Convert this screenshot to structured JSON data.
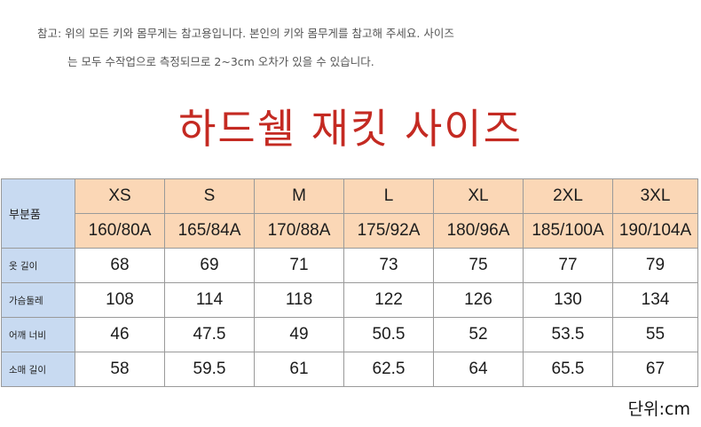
{
  "note": {
    "line1": "참고: 위의 모든 키와 몸무게는 참고용입니다. 본인의 키와 몸무게를 참고해 주세요. 사이즈",
    "line2": "는 모두 수작업으로 측정되므로 2~3cm 오차가 있을 수 있습니다."
  },
  "title": "하드쉘 재킷 사이즈",
  "table": {
    "corner_label": "부분품",
    "sizes": [
      "XS",
      "S",
      "M",
      "L",
      "XL",
      "2XL",
      "3XL"
    ],
    "body_types": [
      "160/80A",
      "165/84A",
      "170/88A",
      "175/92A",
      "180/96A",
      "185/100A",
      "190/104A"
    ],
    "rows": [
      {
        "label": "옷 길이",
        "values": [
          "68",
          "69",
          "71",
          "73",
          "75",
          "77",
          "79"
        ]
      },
      {
        "label": "가슴둘레",
        "values": [
          "108",
          "114",
          "118",
          "122",
          "126",
          "130",
          "134"
        ]
      },
      {
        "label": "어깨 너비",
        "values": [
          "46",
          "47.5",
          "49",
          "50.5",
          "52",
          "53.5",
          "55"
        ]
      },
      {
        "label": "소매 길이",
        "values": [
          "58",
          "59.5",
          "61",
          "62.5",
          "64",
          "65.5",
          "67"
        ]
      }
    ]
  },
  "unit": "단위:cm",
  "colors": {
    "title": "#c42a22",
    "header_bg": "#fbd7b6",
    "label_bg": "#c8daf1"
  }
}
